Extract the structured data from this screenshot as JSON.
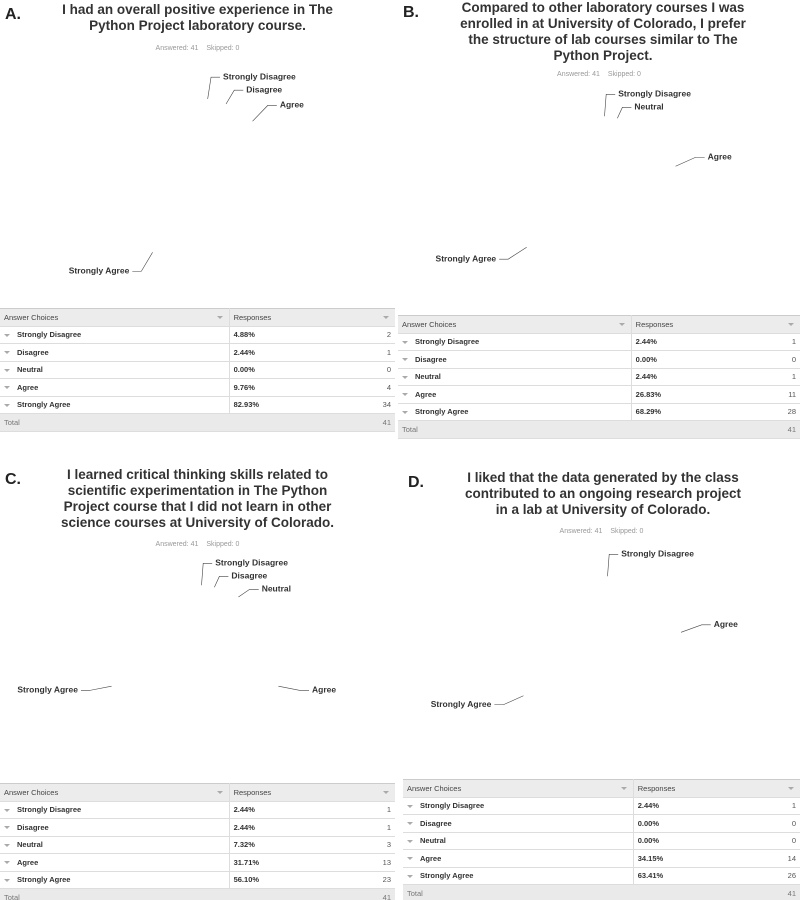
{
  "chart_data": [
    {
      "type": "pie",
      "panel": "A.",
      "title": "I had an overall positive experience in The Python Project laboratory course.",
      "answered": "Answered: 41",
      "skipped": "Skipped: 0",
      "categories": [
        "Strongly Disagree",
        "Disagree",
        "Neutral",
        "Agree",
        "Strongly Agree"
      ],
      "values": [
        4.88,
        2.44,
        0,
        9.76,
        82.93
      ],
      "value_labels": [
        "4.88%",
        "2.44%",
        "0.00%",
        "9.76%",
        "82.93%"
      ],
      "counts": [
        2,
        1,
        0,
        4,
        34
      ],
      "colors": [
        "#7d3f9f",
        "#a56bbd",
        "#fbf4b5",
        "#aec2e6",
        "#4c7dc6"
      ],
      "table_headers": [
        "Answer Choices",
        "Responses"
      ],
      "total_label": "Total",
      "total": 41
    },
    {
      "type": "pie",
      "panel": "B.",
      "title": "Compared to other laboratory courses I was enrolled in at University of Colorado, I prefer the structure of lab courses similar to The Python Project.",
      "answered": "Answered: 41",
      "skipped": "Skipped: 0",
      "categories": [
        "Strongly Disagree",
        "Disagree",
        "Neutral",
        "Agree",
        "Strongly Agree"
      ],
      "values": [
        2.44,
        0,
        2.44,
        26.83,
        68.29
      ],
      "value_labels": [
        "2.44%",
        "0.00%",
        "2.44%",
        "26.83%",
        "68.29%"
      ],
      "counts": [
        1,
        0,
        1,
        11,
        28
      ],
      "colors": [
        "#7d3f9f",
        "#a56bbd",
        "#a56bbd",
        "#aec2e6",
        "#4c7dc6"
      ],
      "table_headers": [
        "Answer Choices",
        "Responses"
      ],
      "total_label": "Total",
      "total": 41
    },
    {
      "type": "pie",
      "panel": "C.",
      "title": "I learned critical thinking skills related to scientific experimentation in The Python Project course that I did not learn in other science courses at University of Colorado.",
      "answered": "Answered: 41",
      "skipped": "Skipped: 0",
      "categories": [
        "Strongly Disagree",
        "Disagree",
        "Neutral",
        "Agree",
        "Strongly Agree"
      ],
      "values": [
        2.44,
        2.44,
        7.32,
        31.71,
        56.1
      ],
      "value_labels": [
        "2.44%",
        "2.44%",
        "7.32%",
        "31.71%",
        "56.10%"
      ],
      "counts": [
        1,
        1,
        3,
        13,
        23
      ],
      "colors": [
        "#7d3f9f",
        "#a56bbd",
        "#fbf6bd",
        "#aec2e6",
        "#4466b4"
      ],
      "table_headers": [
        "Answer Choices",
        "Responses"
      ],
      "total_label": "Total",
      "total": 41
    },
    {
      "type": "pie",
      "panel": "D.",
      "title": "I liked that the data generated by the class contributed to an ongoing research project in a lab at University of Colorado.",
      "answered": "Answered: 41",
      "skipped": "Skipped: 0",
      "categories": [
        "Strongly Disagree",
        "Disagree",
        "Neutral",
        "Agree",
        "Strongly Agree"
      ],
      "values": [
        2.44,
        0,
        0,
        34.15,
        63.41
      ],
      "value_labels": [
        "2.44%",
        "0.00%",
        "0.00%",
        "34.15%",
        "63.41%"
      ],
      "counts": [
        1,
        0,
        0,
        14,
        26
      ],
      "colors": [
        "#7d3f9f",
        "#a56bbd",
        "#fbf4b5",
        "#aec2e6",
        "#3f62b0"
      ],
      "table_headers": [
        "Answer Choices",
        "Responses"
      ],
      "total_label": "Total",
      "total": 41
    }
  ]
}
